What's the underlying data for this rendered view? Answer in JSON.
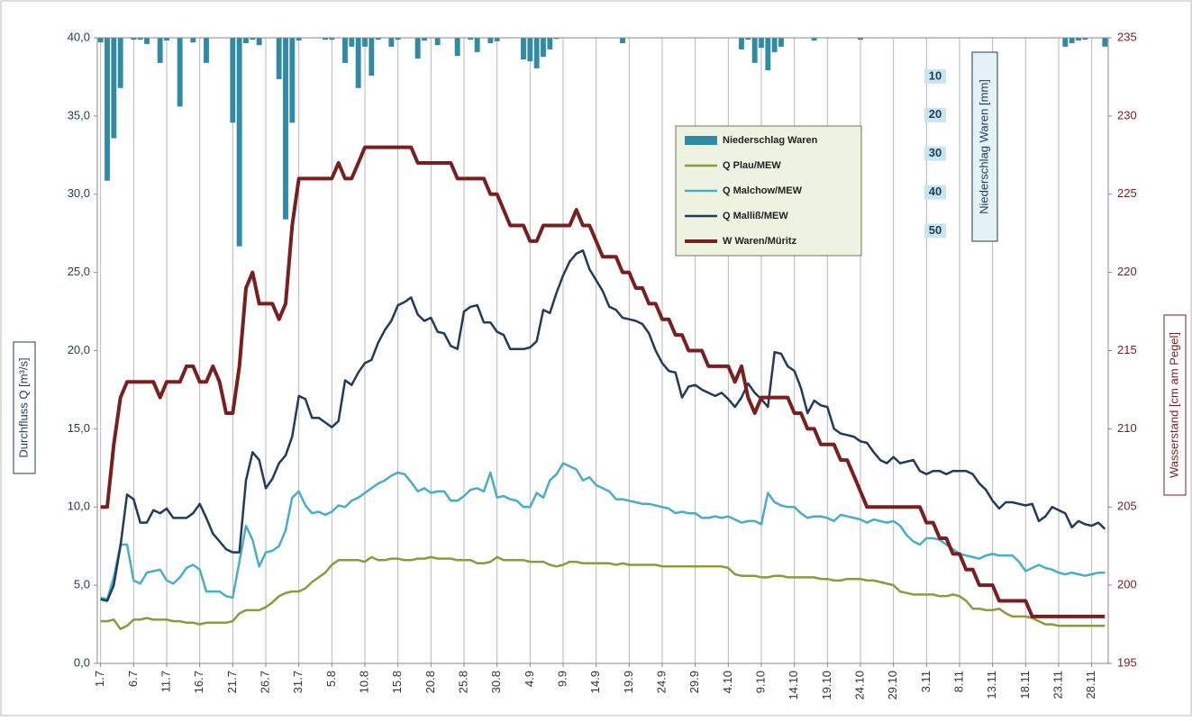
{
  "chart_data": {
    "type": "combo",
    "y_label": "Durchfluss Q [m³/s]",
    "y2_label": "Wasserstand [cm am Pegel]",
    "y3_label": "Niederschlag Waren [mm]",
    "categories": [
      "1.7",
      null,
      null,
      null,
      null,
      "6.7",
      null,
      null,
      null,
      null,
      "11.7",
      null,
      null,
      null,
      null,
      "16.7",
      null,
      null,
      null,
      null,
      "21.7",
      null,
      null,
      null,
      null,
      "26.7",
      null,
      null,
      null,
      null,
      "31.7",
      null,
      null,
      null,
      null,
      "5.8",
      null,
      null,
      null,
      null,
      "10.8",
      null,
      null,
      null,
      null,
      "15.8",
      null,
      null,
      null,
      null,
      "20.8",
      null,
      null,
      null,
      null,
      "25.8",
      null,
      null,
      null,
      null,
      "30.8",
      null,
      null,
      null,
      null,
      "4.9",
      null,
      null,
      null,
      null,
      "9.9",
      null,
      null,
      null,
      null,
      "14.9",
      null,
      null,
      null,
      null,
      "19.9",
      null,
      null,
      null,
      null,
      "24.9",
      null,
      null,
      null,
      null,
      "29.9",
      null,
      null,
      null,
      null,
      "4.10",
      null,
      null,
      null,
      null,
      "9.10",
      null,
      null,
      null,
      null,
      "14.10",
      null,
      null,
      null,
      null,
      "19.10",
      null,
      null,
      null,
      null,
      "24.10",
      null,
      null,
      null,
      null,
      "29.10",
      null,
      null,
      null,
      null,
      "3.11",
      null,
      null,
      null,
      null,
      "8.11",
      null,
      null,
      null,
      null,
      "13.11",
      null,
      null,
      null,
      null,
      "18.11",
      null,
      null,
      null,
      null,
      "23.11",
      null,
      null,
      null,
      null,
      "28.11",
      null,
      null
    ],
    "ylim": [
      0,
      40
    ],
    "yticks": [
      {
        "value": 0,
        "label": "0,0"
      },
      {
        "value": 5,
        "label": "5,0"
      },
      {
        "value": 10,
        "label": "10,0"
      },
      {
        "value": 15,
        "label": "15,0"
      },
      {
        "value": 20,
        "label": "20,0"
      },
      {
        "value": 25,
        "label": "25,0"
      },
      {
        "value": 30,
        "label": "30,0"
      },
      {
        "value": 35,
        "label": "35,0"
      },
      {
        "value": 40,
        "label": "40,0"
      }
    ],
    "y2lim": [
      195,
      235
    ],
    "y2ticks": [
      195,
      200,
      205,
      210,
      215,
      220,
      225,
      230,
      235
    ],
    "y3lim": [
      0,
      162
    ],
    "y3_inverted": true,
    "y3ticks": [
      10,
      20,
      30,
      40,
      50
    ],
    "xgrid": true,
    "series": [
      {
        "name": "Niederschlag Waren",
        "type": "bar",
        "axis": "y3",
        "color": "#2f8aa3",
        "values": [
          1.2,
          37,
          26,
          13,
          0,
          0.5,
          0.5,
          1.6,
          0,
          6.5,
          0.7,
          0,
          17.8,
          0,
          1.2,
          0,
          6.5,
          0,
          0,
          0,
          22,
          54,
          1.4,
          0.5,
          1.9,
          0,
          0,
          10.7,
          47,
          22,
          0.7,
          0,
          0,
          0,
          0.5,
          0.5,
          0,
          6.5,
          2.3,
          13,
          2.3,
          9.8,
          0.5,
          0,
          2.3,
          0.5,
          0,
          0,
          5.4,
          0.7,
          0,
          1.9,
          0,
          0,
          4.7,
          0,
          0.5,
          3.7,
          0,
          1.4,
          0.9,
          0,
          0,
          0,
          5.6,
          6.1,
          7.9,
          4.9,
          3.0,
          0.3,
          0,
          0,
          0,
          0,
          0,
          0,
          0,
          0,
          0,
          1.4,
          0,
          0,
          0,
          0,
          0,
          0,
          0,
          0,
          0,
          0,
          0,
          0,
          0,
          0,
          0,
          0,
          0,
          3.0,
          0.5,
          6.5,
          2.6,
          8.4,
          3.7,
          2.3,
          0,
          0,
          0,
          0,
          0.7,
          0,
          0,
          0,
          0,
          0,
          0,
          0.5,
          0,
          0,
          0,
          0,
          0,
          0,
          0,
          0,
          0,
          0,
          0,
          0,
          0,
          0,
          0,
          0,
          0,
          0,
          0,
          0,
          0,
          0,
          0,
          0,
          0,
          0,
          0,
          0,
          0,
          0,
          2.3,
          1.4,
          0.7,
          0.5,
          0,
          0,
          2.3
        ]
      },
      {
        "name": "Q Plau/MEW",
        "type": "line",
        "axis": "y",
        "color": "#8c9a3e",
        "width": 2.5,
        "values": [
          2.7,
          2.7,
          2.8,
          2.2,
          2.4,
          2.8,
          2.8,
          2.9,
          2.8,
          2.8,
          2.8,
          2.7,
          2.7,
          2.6,
          2.6,
          2.5,
          2.6,
          2.6,
          2.6,
          2.6,
          2.7,
          3.2,
          3.4,
          3.4,
          3.4,
          3.6,
          3.9,
          4.3,
          4.5,
          4.6,
          4.6,
          4.8,
          5.2,
          5.5,
          5.8,
          6.3,
          6.6,
          6.6,
          6.6,
          6.6,
          6.5,
          6.8,
          6.6,
          6.6,
          6.7,
          6.7,
          6.6,
          6.6,
          6.7,
          6.7,
          6.8,
          6.7,
          6.7,
          6.7,
          6.6,
          6.6,
          6.6,
          6.4,
          6.4,
          6.5,
          6.8,
          6.6,
          6.6,
          6.6,
          6.6,
          6.5,
          6.5,
          6.5,
          6.3,
          6.2,
          6.3,
          6.5,
          6.5,
          6.4,
          6.4,
          6.4,
          6.4,
          6.4,
          6.3,
          6.4,
          6.3,
          6.3,
          6.3,
          6.3,
          6.3,
          6.2,
          6.2,
          6.2,
          6.2,
          6.2,
          6.2,
          6.2,
          6.2,
          6.2,
          6.2,
          6.1,
          5.7,
          5.6,
          5.6,
          5.6,
          5.5,
          5.5,
          5.6,
          5.6,
          5.5,
          5.5,
          5.5,
          5.5,
          5.5,
          5.4,
          5.4,
          5.3,
          5.3,
          5.4,
          5.4,
          5.4,
          5.3,
          5.3,
          5.2,
          5.1,
          5.0,
          4.6,
          4.5,
          4.4,
          4.4,
          4.4,
          4.4,
          4.3,
          4.3,
          4.4,
          4.3,
          4.0,
          3.5,
          3.5,
          3.4,
          3.4,
          3.5,
          3.2,
          3.0,
          3.0,
          3.0,
          2.9,
          2.7,
          2.5,
          2.5,
          2.4,
          2.4,
          2.4,
          2.4,
          2.4,
          2.4,
          2.4,
          2.4
        ]
      },
      {
        "name": "Q Malchow/MEW",
        "type": "line",
        "axis": "y",
        "color": "#4aadc7",
        "width": 2.5,
        "values": [
          4.2,
          4.1,
          5.5,
          7.6,
          7.6,
          5.3,
          5.1,
          5.8,
          5.9,
          6.0,
          5.3,
          5.1,
          5.5,
          6.1,
          6.3,
          6.0,
          4.6,
          4.6,
          4.6,
          4.3,
          4.2,
          6.5,
          8.8,
          7.9,
          6.2,
          7.1,
          7.2,
          7.5,
          8.5,
          10.6,
          11.0,
          10.1,
          9.6,
          9.7,
          9.5,
          9.7,
          10.1,
          10.0,
          10.4,
          10.6,
          10.9,
          11.2,
          11.5,
          11.7,
          12.0,
          12.2,
          12.1,
          11.6,
          11.0,
          11.2,
          10.9,
          11.0,
          11.0,
          10.4,
          10.4,
          10.7,
          11.1,
          11.2,
          11.0,
          12.2,
          10.6,
          10.7,
          10.5,
          10.4,
          10.0,
          10.0,
          10.9,
          10.6,
          11.7,
          12.1,
          12.8,
          12.6,
          12.4,
          11.7,
          11.9,
          11.4,
          11.2,
          11.0,
          10.5,
          10.5,
          10.4,
          10.3,
          10.2,
          10.2,
          10.1,
          10.0,
          9.9,
          9.6,
          9.7,
          9.6,
          9.6,
          9.3,
          9.3,
          9.4,
          9.3,
          9.4,
          9.2,
          9.0,
          9.1,
          9.1,
          8.9,
          10.9,
          10.3,
          10.1,
          10.0,
          10.0,
          9.6,
          9.3,
          9.4,
          9.4,
          9.3,
          9.1,
          9.5,
          9.4,
          9.3,
          9.2,
          9.0,
          9.2,
          9.1,
          9.0,
          9.1,
          8.8,
          8.2,
          7.8,
          7.6,
          8.0,
          8.0,
          7.9,
          7.6,
          7.3,
          7.0,
          6.9,
          6.8,
          6.7,
          6.9,
          7.0,
          6.9,
          6.9,
          6.9,
          6.5,
          5.9,
          6.1,
          6.3,
          6.1,
          6.0,
          5.8,
          5.7,
          5.8,
          5.7,
          5.6,
          5.7,
          5.8,
          5.8
        ]
      },
      {
        "name": "Q Malliß/MEW",
        "type": "line",
        "axis": "y",
        "color": "#1f3b5e",
        "width": 2.5,
        "values": [
          4.1,
          4.0,
          5.0,
          7.5,
          10.8,
          10.5,
          9.0,
          9.0,
          9.8,
          9.6,
          9.9,
          9.3,
          9.3,
          9.3,
          9.6,
          10.2,
          9.3,
          8.3,
          7.8,
          7.3,
          7.1,
          7.1,
          11.7,
          13.5,
          13.0,
          11.2,
          11.8,
          12.8,
          13.3,
          14.5,
          17.1,
          16.9,
          15.7,
          15.7,
          15.4,
          15.1,
          15.5,
          18.1,
          17.8,
          18.6,
          19.2,
          19.4,
          20.5,
          21.3,
          21.9,
          22.9,
          23.1,
          23.4,
          22.3,
          21.9,
          22.1,
          21.2,
          21.1,
          20.3,
          20.1,
          22.5,
          22.8,
          22.9,
          21.8,
          21.8,
          21.2,
          21.0,
          20.1,
          20.1,
          20.1,
          20.2,
          20.6,
          22.6,
          22.4,
          23.7,
          24.8,
          25.7,
          26.2,
          26.4,
          25.2,
          24.5,
          23.8,
          22.8,
          22.6,
          22.1,
          22.0,
          21.9,
          21.7,
          21.1,
          20.0,
          19.2,
          18.7,
          18.6,
          17.0,
          17.7,
          17.8,
          17.5,
          17.3,
          17.1,
          17.3,
          16.9,
          16.4,
          17.0,
          17.9,
          17.3,
          16.9,
          16.4,
          19.9,
          19.8,
          19.0,
          18.7,
          17.6,
          16.0,
          16.8,
          16.5,
          16.4,
          15.0,
          14.7,
          14.6,
          14.5,
          14.2,
          14.1,
          13.5,
          13.0,
          12.8,
          13.2,
          12.8,
          12.9,
          13.0,
          12.3,
          12.1,
          12.3,
          12.3,
          12.1,
          12.3,
          12.3,
          12.3,
          12.1,
          11.5,
          11.1,
          10.4,
          9.9,
          10.3,
          10.3,
          10.2,
          10.1,
          10.2,
          9.1,
          9.4,
          10.0,
          9.8,
          9.6,
          8.7,
          9.1,
          8.9,
          8.8,
          9.0,
          8.6
        ]
      },
      {
        "name": "W Waren/Müritz",
        "type": "line",
        "axis": "y2",
        "color": "#7a1e1e",
        "width": 4,
        "values": [
          205,
          205,
          209,
          212,
          213,
          213,
          213,
          213,
          213,
          212,
          213,
          213,
          213,
          214,
          214,
          213,
          213,
          214,
          213,
          211,
          211,
          214,
          219,
          220,
          218,
          218,
          218,
          217,
          218,
          223,
          226,
          226,
          226,
          226,
          226,
          226,
          227,
          226,
          226,
          227,
          228,
          228,
          228,
          228,
          228,
          228,
          228,
          228,
          227,
          227,
          227,
          227,
          227,
          227,
          226,
          226,
          226,
          226,
          226,
          225,
          225,
          224,
          223,
          223,
          223,
          222,
          222,
          223,
          223,
          223,
          223,
          223,
          224,
          223,
          223,
          222,
          221,
          221,
          221,
          220,
          220,
          219,
          219,
          218,
          218,
          217,
          217,
          216,
          216,
          215,
          215,
          215,
          214,
          214,
          214,
          214,
          213,
          214,
          212,
          211,
          212,
          212,
          212,
          212,
          212,
          211,
          211,
          210,
          210,
          209,
          209,
          209,
          208,
          208,
          207,
          206,
          205,
          205,
          205,
          205,
          205,
          205,
          205,
          205,
          205,
          204,
          204,
          203,
          203,
          202,
          202,
          201,
          201,
          200,
          200,
          200,
          199,
          199,
          199,
          199,
          199,
          198,
          198,
          198,
          198,
          198,
          198,
          198,
          198,
          198,
          198,
          198,
          198
        ]
      }
    ]
  }
}
